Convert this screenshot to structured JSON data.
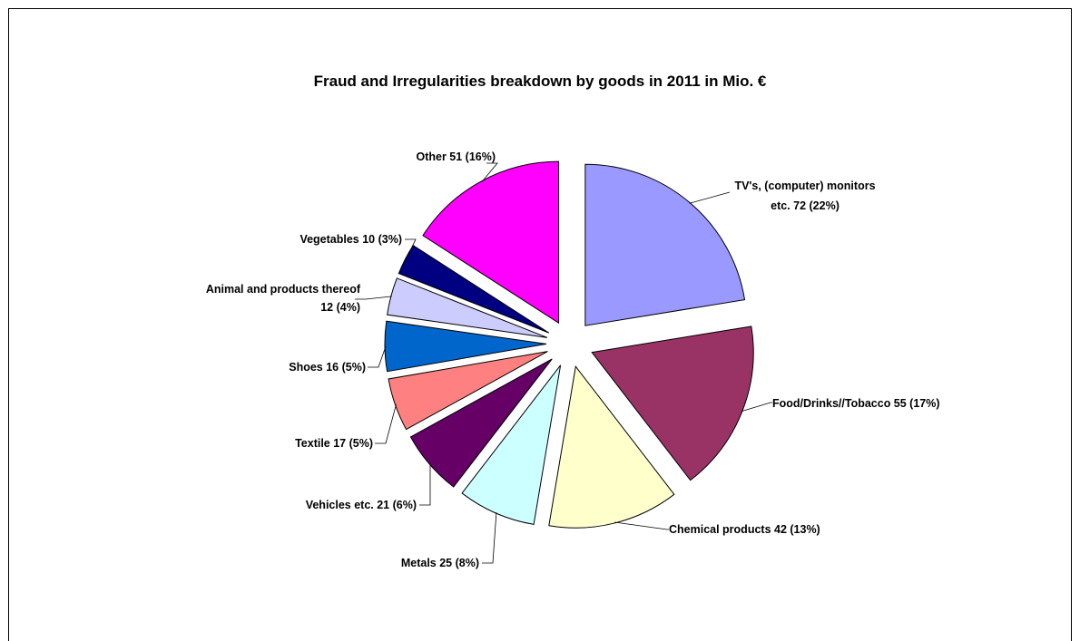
{
  "chart_data": {
    "type": "pie",
    "title": "Fraud and Irregularities breakdown by goods in 2011 in Mio. €",
    "slices": [
      {
        "label": "TV's, (computer) monitors etc. 72 (22%)",
        "label_lines": [
          "TV's, (computer) monitors",
          "etc. 72 (22%)"
        ],
        "category": "TV's, (computer) monitors etc.",
        "value": 72,
        "percent": 22,
        "color": "#9999FF"
      },
      {
        "label": "Food/Drinks//Tobacco 55 (17%)",
        "label_lines": [
          "Food/Drinks//Tobacco 55 (17%)"
        ],
        "category": "Food/Drinks//Tobacco",
        "value": 55,
        "percent": 17,
        "color": "#993366"
      },
      {
        "label": "Chemical products 42 (13%)",
        "label_lines": [
          "Chemical products 42 (13%)"
        ],
        "category": "Chemical products",
        "value": 42,
        "percent": 13,
        "color": "#FFFFCC"
      },
      {
        "label": "Metals 25 (8%)",
        "label_lines": [
          "Metals 25 (8%)"
        ],
        "category": "Metals",
        "value": 25,
        "percent": 8,
        "color": "#CCFFFF"
      },
      {
        "label": "Vehicles etc. 21 (6%)",
        "label_lines": [
          "Vehicles etc. 21 (6%)"
        ],
        "category": "Vehicles etc.",
        "value": 21,
        "percent": 6,
        "color": "#660066"
      },
      {
        "label": "Textile 17 (5%)",
        "label_lines": [
          "Textile 17 (5%)"
        ],
        "category": "Textile",
        "value": 17,
        "percent": 5,
        "color": "#FF8080"
      },
      {
        "label": "Shoes 16 (5%)",
        "label_lines": [
          "Shoes 16 (5%)"
        ],
        "category": "Shoes",
        "value": 16,
        "percent": 5,
        "color": "#0066CC"
      },
      {
        "label": "Animal and products thereof 12 (4%)",
        "label_lines": [
          "Animal and products thereof",
          "12 (4%)"
        ],
        "category": "Animal and products thereof",
        "value": 12,
        "percent": 4,
        "color": "#CCCCFF"
      },
      {
        "label": "Vegetables 10 (3%)",
        "label_lines": [
          "Vegetables 10 (3%)"
        ],
        "category": "Vegetables",
        "value": 10,
        "percent": 3,
        "color": "#000080"
      },
      {
        "label": "Other 51 (16%)",
        "label_lines": [
          "Other 51 (16%)"
        ],
        "category": "Other",
        "value": 51,
        "percent": 16,
        "color": "#FF00FF"
      }
    ],
    "start_angle_deg": 0,
    "direction": "clockwise",
    "exploded": true,
    "legend": "none"
  }
}
